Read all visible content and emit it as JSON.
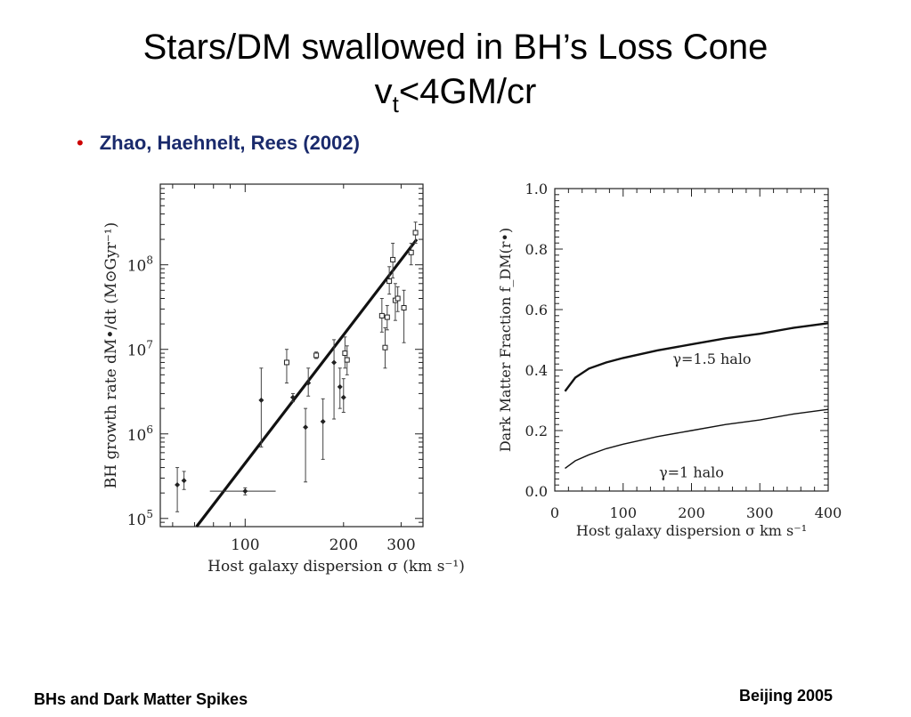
{
  "slide": {
    "title_line1": "Stars/DM swallowed in BH’s Loss Cone",
    "title_line2_v": "v",
    "title_line2_sub": "t",
    "title_line2_rest": "<4GM/cr",
    "bullet": "Zhao, Haehnelt, Rees (2002)",
    "footer_left": "BHs and Dark Matter Spikes",
    "footer_right": "Beijing 2005"
  },
  "chart_data": [
    {
      "type": "scatter",
      "title": "",
      "xlabel": "Host galaxy dispersion σ (km s⁻¹)",
      "ylabel": "BH growth rate dM•/dt (M⊙Gyr⁻¹)",
      "xscale": "log",
      "yscale": "log",
      "xlim": [
        55,
        350
      ],
      "ylim": [
        80000,
        900000000
      ],
      "xticks": [
        {
          "v": 100,
          "label": "100"
        },
        {
          "v": 200,
          "label": "200"
        },
        {
          "v": 300,
          "label": "300"
        }
      ],
      "yticks": [
        {
          "v": 100000,
          "b": "10",
          "e": "5"
        },
        {
          "v": 1000000,
          "b": "10",
          "e": "6"
        },
        {
          "v": 10000000,
          "b": "10",
          "e": "7"
        },
        {
          "v": 100000000,
          "b": "10",
          "e": "8"
        }
      ],
      "fit_line": {
        "x": [
          71,
          335
        ],
        "y": [
          80000,
          200000000
        ]
      },
      "horizontal_segment": {
        "x": [
          78,
          124
        ],
        "y": 210000
      },
      "points": [
        {
          "x": 62,
          "y": 250000,
          "lo": 120000,
          "hi": 400000,
          "m": "d"
        },
        {
          "x": 65,
          "y": 280000,
          "lo": 220000,
          "hi": 360000,
          "m": "d"
        },
        {
          "x": 100,
          "y": 210000,
          "lo": 190000,
          "hi": 230000,
          "m": "d"
        },
        {
          "x": 112,
          "y": 2500000,
          "lo": 700000,
          "hi": 6000000,
          "m": "d"
        },
        {
          "x": 134,
          "y": 7000000,
          "lo": 4000000,
          "hi": 10000000,
          "m": "s"
        },
        {
          "x": 140,
          "y": 2700000,
          "lo": 2400000,
          "hi": 3000000,
          "m": "d"
        },
        {
          "x": 153,
          "y": 1200000,
          "lo": 270000,
          "hi": 2000000,
          "m": "d"
        },
        {
          "x": 156,
          "y": 4000000,
          "lo": 2800000,
          "hi": 6000000,
          "m": "d"
        },
        {
          "x": 165,
          "y": 8500000,
          "lo": 7800000,
          "hi": 9300000,
          "m": "s"
        },
        {
          "x": 173,
          "y": 1400000,
          "lo": 500000,
          "hi": 2600000,
          "m": "d"
        },
        {
          "x": 187,
          "y": 7000000,
          "lo": 1500000,
          "hi": 13000000,
          "m": "d"
        },
        {
          "x": 195,
          "y": 3600000,
          "lo": 2000000,
          "hi": 6000000,
          "m": "d"
        },
        {
          "x": 200,
          "y": 2700000,
          "lo": 1800000,
          "hi": 4500000,
          "m": "d"
        },
        {
          "x": 202,
          "y": 9000000,
          "lo": 6000000,
          "hi": 14000000,
          "m": "s"
        },
        {
          "x": 205,
          "y": 7500000,
          "lo": 5000000,
          "hi": 11000000,
          "m": "s"
        },
        {
          "x": 262,
          "y": 25000000,
          "lo": 16000000,
          "hi": 40000000,
          "m": "s"
        },
        {
          "x": 268,
          "y": 10500000,
          "lo": 6000000,
          "hi": 18000000,
          "m": "s"
        },
        {
          "x": 272,
          "y": 24000000,
          "lo": 17000000,
          "hi": 33000000,
          "m": "s"
        },
        {
          "x": 276,
          "y": 64000000,
          "lo": 45000000,
          "hi": 95000000,
          "m": "s"
        },
        {
          "x": 283,
          "y": 115000000,
          "lo": 70000000,
          "hi": 180000000,
          "m": "s"
        },
        {
          "x": 288,
          "y": 38000000,
          "lo": 22000000,
          "hi": 60000000,
          "m": "s"
        },
        {
          "x": 293,
          "y": 40000000,
          "lo": 28000000,
          "hi": 55000000,
          "m": "s"
        },
        {
          "x": 306,
          "y": 31000000,
          "lo": 12000000,
          "hi": 50000000,
          "m": "s"
        },
        {
          "x": 322,
          "y": 140000000,
          "lo": 100000000,
          "hi": 180000000,
          "m": "s"
        },
        {
          "x": 332,
          "y": 240000000,
          "lo": 180000000,
          "hi": 320000000,
          "m": "s"
        }
      ]
    },
    {
      "type": "line",
      "title": "",
      "xlabel": "Host galaxy dispersion σ km s⁻¹",
      "ylabel": "Dark Matter Fraction f_DM(r•)",
      "xlim": [
        0,
        400
      ],
      "ylim": [
        0,
        1.0
      ],
      "xticks": [
        0,
        100,
        200,
        300,
        400
      ],
      "yticks": [
        0.0,
        0.2,
        0.4,
        0.6,
        0.8,
        1.0
      ],
      "series": [
        {
          "name": "γ=1.5 halo",
          "x": [
            15,
            30,
            50,
            75,
            100,
            150,
            200,
            250,
            300,
            350,
            400
          ],
          "y": [
            0.33,
            0.375,
            0.405,
            0.425,
            0.44,
            0.465,
            0.485,
            0.505,
            0.52,
            0.54,
            0.555
          ]
        },
        {
          "name": "γ=1 halo",
          "x": [
            15,
            30,
            50,
            75,
            100,
            150,
            200,
            250,
            300,
            350,
            400
          ],
          "y": [
            0.075,
            0.1,
            0.12,
            0.14,
            0.155,
            0.18,
            0.2,
            0.22,
            0.235,
            0.255,
            0.27
          ]
        }
      ]
    }
  ]
}
